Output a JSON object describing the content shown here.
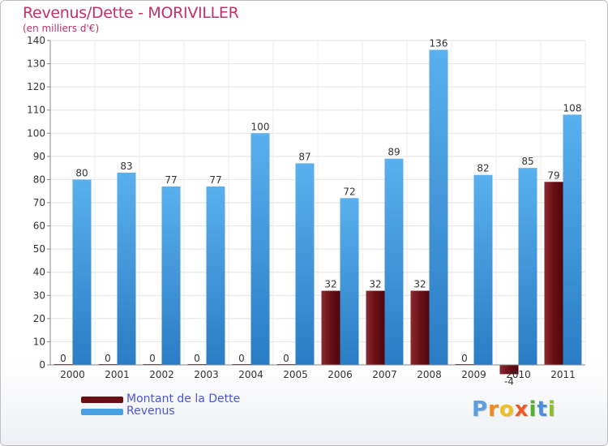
{
  "title": "Revenus/Dette - MORIVILLER",
  "subtitle": "(en milliers d'€)",
  "colors": {
    "debt": "#6b0f16",
    "revenue": "#4a9fe0",
    "title": "#c0306a",
    "legend_text": "#4a55d8"
  },
  "legend": {
    "debt_label": "Montant de la Dette",
    "revenue_label": "Revenus"
  },
  "logo": {
    "text": "Proxiti",
    "letters": [
      "P",
      "r",
      "o",
      "x",
      "i",
      "t",
      "i"
    ],
    "colors": [
      "#5aa0e0",
      "#f08a1c",
      "#f0c020",
      "#ef5a24",
      "#56b030",
      "#4a8fd8",
      "#8bbf2c"
    ]
  },
  "chart_data": {
    "type": "bar",
    "title": "Revenus/Dette - MORIVILLER",
    "ylabel": "(en milliers d'€)",
    "xlabel": "",
    "categories": [
      "2000",
      "2001",
      "2002",
      "2003",
      "2004",
      "2005",
      "2006",
      "2007",
      "2008",
      "2009",
      "2010",
      "2011"
    ],
    "series": [
      {
        "name": "Montant de la Dette",
        "values": [
          0,
          0,
          0,
          0,
          0,
          0,
          32,
          32,
          32,
          0,
          -4,
          79
        ]
      },
      {
        "name": "Revenus",
        "values": [
          80,
          83,
          77,
          77,
          100,
          87,
          72,
          89,
          136,
          82,
          85,
          108
        ]
      }
    ],
    "ylim": [
      0,
      140
    ],
    "yticks": [
      0,
      10,
      20,
      30,
      40,
      50,
      60,
      70,
      80,
      90,
      100,
      110,
      120,
      130,
      140
    ],
    "grid": true,
    "legend_position": "bottom-left"
  }
}
